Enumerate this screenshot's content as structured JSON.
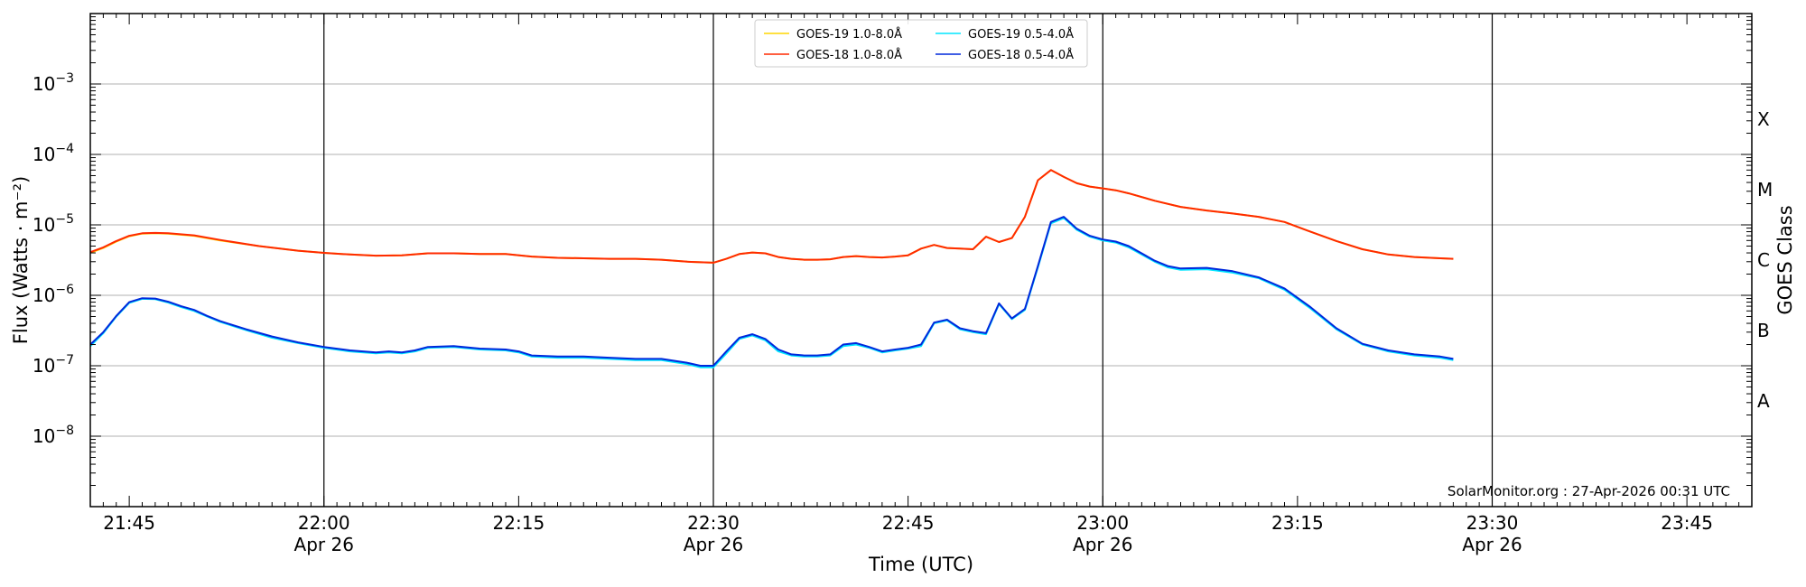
{
  "chart_data": {
    "type": "line",
    "title": "",
    "xlabel": "Time (UTC)",
    "ylabel": "Flux (Watts · m⁻²)",
    "y2label": "GOES Class",
    "yscale": "log",
    "ylim": [
      1e-09,
      0.01
    ],
    "xlim": [
      "21:42",
      "23:50"
    ],
    "grid": "horizontal",
    "legend_position": "top-center",
    "credit": "SolarMonitor.org : 27-Apr-2026 00:31 UTC",
    "x_ticks": [
      {
        "t": "21:45",
        "label": "21:45",
        "sub": ""
      },
      {
        "t": "22:00",
        "label": "22:00",
        "sub": "Apr 26"
      },
      {
        "t": "22:15",
        "label": "22:15",
        "sub": ""
      },
      {
        "t": "22:30",
        "label": "22:30",
        "sub": "Apr 26"
      },
      {
        "t": "22:45",
        "label": "22:45",
        "sub": ""
      },
      {
        "t": "23:00",
        "label": "23:00",
        "sub": "Apr 26"
      },
      {
        "t": "23:15",
        "label": "23:15",
        "sub": ""
      },
      {
        "t": "23:30",
        "label": "23:30",
        "sub": "Apr 26"
      },
      {
        "t": "23:45",
        "label": "23:45",
        "sub": ""
      }
    ],
    "day_lines": [
      "22:00",
      "22:30",
      "23:00",
      "23:30"
    ],
    "y_ticks": [
      {
        "value": 1e-08,
        "base": "10",
        "exp": "−8"
      },
      {
        "value": 1e-07,
        "base": "10",
        "exp": "−7"
      },
      {
        "value": 1e-06,
        "base": "10",
        "exp": "−6"
      },
      {
        "value": 1e-05,
        "base": "10",
        "exp": "−5"
      },
      {
        "value": 0.0001,
        "base": "10",
        "exp": "−4"
      },
      {
        "value": 0.001,
        "base": "10",
        "exp": "−3"
      }
    ],
    "classes": [
      {
        "label": "A",
        "value": 3.16e-08
      },
      {
        "label": "B",
        "value": 3.16e-07
      },
      {
        "label": "C",
        "value": 3.16e-06
      },
      {
        "label": "M",
        "value": 3.16e-05
      },
      {
        "label": "X",
        "value": 0.000316
      }
    ],
    "series": [
      {
        "name": "GOES-19 1.0-8.0Å",
        "color": "#FFD500",
        "x": [
          "21:42",
          "21:43",
          "21:44",
          "21:45",
          "21:46",
          "21:47",
          "21:48",
          "21:50",
          "21:52",
          "21:55",
          "21:58",
          "22:00",
          "22:02",
          "22:04",
          "22:06",
          "22:08",
          "22:10",
          "22:12",
          "22:14",
          "22:16",
          "22:18",
          "22:20",
          "22:22",
          "22:24",
          "22:26",
          "22:28",
          "22:30",
          "22:31",
          "22:32",
          "22:33",
          "22:34",
          "22:35",
          "22:36",
          "22:37",
          "22:38",
          "22:39",
          "22:40",
          "22:41",
          "22:42",
          "22:43",
          "22:44",
          "22:45",
          "22:46",
          "22:47",
          "22:48",
          "22:49",
          "22:50",
          "22:51",
          "22:52",
          "22:53",
          "22:54",
          "22:55",
          "22:56",
          "22:57",
          "22:58",
          "22:59",
          "23:00",
          "23:01",
          "23:02",
          "23:04",
          "23:06",
          "23:08",
          "23:10",
          "23:12",
          "23:14",
          "23:16",
          "23:18",
          "23:20",
          "23:22",
          "23:24",
          "23:26",
          "23:27"
        ],
        "y": [
          4e-06,
          4.7e-06,
          5.8e-06,
          6.9e-06,
          7.5e-06,
          7.6e-06,
          7.5e-06,
          7e-06,
          6e-06,
          5e-06,
          4.3e-06,
          4e-06,
          3.8e-06,
          3.65e-06,
          3.7e-06,
          3.95e-06,
          3.95e-06,
          3.85e-06,
          3.85e-06,
          3.55e-06,
          3.4e-06,
          3.35e-06,
          3.3e-06,
          3.3e-06,
          3.2e-06,
          3e-06,
          2.9e-06,
          3.3e-06,
          3.85e-06,
          4.05e-06,
          3.95e-06,
          3.5e-06,
          3.3e-06,
          3.2e-06,
          3.2e-06,
          3.25e-06,
          3.5e-06,
          3.6e-06,
          3.5e-06,
          3.45e-06,
          3.55e-06,
          3.7e-06,
          4.6e-06,
          5.2e-06,
          4.7e-06,
          4.6e-06,
          4.5e-06,
          6.8e-06,
          5.7e-06,
          6.5e-06,
          1.3e-05,
          4.3e-05,
          6e-05,
          4.8e-05,
          3.9e-05,
          3.5e-05,
          3.3e-05,
          3.1e-05,
          2.8e-05,
          2.2e-05,
          1.8e-05,
          1.6e-05,
          1.45e-05,
          1.3e-05,
          1.1e-05,
          8e-06,
          5.9e-06,
          4.5e-06,
          3.8e-06,
          3.5e-06,
          3.35e-06,
          3.3e-06
        ]
      },
      {
        "name": "GOES-18 1.0-8.0Å",
        "color": "#FF2A00",
        "x": [
          "21:42",
          "21:43",
          "21:44",
          "21:45",
          "21:46",
          "21:47",
          "21:48",
          "21:50",
          "21:52",
          "21:55",
          "21:58",
          "22:00",
          "22:02",
          "22:04",
          "22:06",
          "22:08",
          "22:10",
          "22:12",
          "22:14",
          "22:16",
          "22:18",
          "22:20",
          "22:22",
          "22:24",
          "22:26",
          "22:28",
          "22:30",
          "22:31",
          "22:32",
          "22:33",
          "22:34",
          "22:35",
          "22:36",
          "22:37",
          "22:38",
          "22:39",
          "22:40",
          "22:41",
          "22:42",
          "22:43",
          "22:44",
          "22:45",
          "22:46",
          "22:47",
          "22:48",
          "22:49",
          "22:50",
          "22:51",
          "22:52",
          "22:53",
          "22:54",
          "22:55",
          "22:56",
          "22:57",
          "22:58",
          "22:59",
          "23:00",
          "23:01",
          "23:02",
          "23:04",
          "23:06",
          "23:08",
          "23:10",
          "23:12",
          "23:14",
          "23:16",
          "23:18",
          "23:20",
          "23:22",
          "23:24",
          "23:26",
          "23:27"
        ],
        "y": [
          4.1e-06,
          4.8e-06,
          5.9e-06,
          7e-06,
          7.6e-06,
          7.7e-06,
          7.6e-06,
          7.1e-06,
          6.1e-06,
          5e-06,
          4.3e-06,
          4e-06,
          3.8e-06,
          3.65e-06,
          3.7e-06,
          3.95e-06,
          3.95e-06,
          3.85e-06,
          3.85e-06,
          3.55e-06,
          3.4e-06,
          3.35e-06,
          3.3e-06,
          3.3e-06,
          3.2e-06,
          3e-06,
          2.9e-06,
          3.3e-06,
          3.85e-06,
          4.05e-06,
          3.95e-06,
          3.5e-06,
          3.3e-06,
          3.2e-06,
          3.2e-06,
          3.25e-06,
          3.5e-06,
          3.6e-06,
          3.5e-06,
          3.45e-06,
          3.55e-06,
          3.7e-06,
          4.6e-06,
          5.2e-06,
          4.7e-06,
          4.6e-06,
          4.5e-06,
          6.8e-06,
          5.7e-06,
          6.5e-06,
          1.3e-05,
          4.3e-05,
          6e-05,
          4.8e-05,
          3.9e-05,
          3.5e-05,
          3.3e-05,
          3.1e-05,
          2.8e-05,
          2.2e-05,
          1.8e-05,
          1.6e-05,
          1.45e-05,
          1.3e-05,
          1.1e-05,
          8e-06,
          5.9e-06,
          4.5e-06,
          3.8e-06,
          3.5e-06,
          3.35e-06,
          3.3e-06
        ]
      },
      {
        "name": "GOES-19 0.5-4.0Å",
        "color": "#00E5FF",
        "x": [
          "21:42",
          "21:43",
          "21:44",
          "21:45",
          "21:46",
          "21:47",
          "21:48",
          "21:49",
          "21:50",
          "21:51",
          "21:52",
          "21:54",
          "21:56",
          "21:58",
          "22:00",
          "22:02",
          "22:04",
          "22:05",
          "22:06",
          "22:07",
          "22:08",
          "22:10",
          "22:12",
          "22:14",
          "22:15",
          "22:16",
          "22:18",
          "22:20",
          "22:22",
          "22:24",
          "22:26",
          "22:28",
          "22:29",
          "22:30",
          "22:31",
          "22:32",
          "22:33",
          "22:34",
          "22:35",
          "22:36",
          "22:37",
          "22:38",
          "22:39",
          "22:40",
          "22:41",
          "22:42",
          "22:43",
          "22:44",
          "22:45",
          "22:46",
          "22:47",
          "22:48",
          "22:49",
          "22:50",
          "22:51",
          "22:52",
          "22:53",
          "22:54",
          "22:55",
          "22:56",
          "22:57",
          "22:58",
          "22:59",
          "23:00",
          "23:01",
          "23:02",
          "23:04",
          "23:05",
          "23:06",
          "23:08",
          "23:10",
          "23:12",
          "23:14",
          "23:16",
          "23:18",
          "23:20",
          "23:22",
          "23:24",
          "23:26",
          "23:27"
        ],
        "y": [
          1.9e-07,
          2.9e-07,
          5e-07,
          7.8e-07,
          8.9e-07,
          8.8e-07,
          7.9e-07,
          6.8e-07,
          6e-07,
          5e-07,
          4.2e-07,
          3.2e-07,
          2.5e-07,
          2.1e-07,
          1.8e-07,
          1.6e-07,
          1.5e-07,
          1.55e-07,
          1.5e-07,
          1.6e-07,
          1.8e-07,
          1.85e-07,
          1.7e-07,
          1.65e-07,
          1.55e-07,
          1.35e-07,
          1.3e-07,
          1.3e-07,
          1.25e-07,
          1.2e-07,
          1.2e-07,
          1.05e-07,
          9.5e-08,
          9.5e-08,
          1.5e-07,
          2.4e-07,
          2.7e-07,
          2.3e-07,
          1.6e-07,
          1.4e-07,
          1.35e-07,
          1.35e-07,
          1.4e-07,
          1.9e-07,
          2e-07,
          1.8e-07,
          1.55e-07,
          1.65e-07,
          1.75e-07,
          1.9e-07,
          4e-07,
          4.4e-07,
          3.3e-07,
          3e-07,
          2.8e-07,
          7.5e-07,
          4.6e-07,
          6.2e-07,
          2.5e-06,
          1.05e-05,
          1.25e-05,
          8.5e-06,
          6.8e-06,
          6e-06,
          5.6e-06,
          4.8e-06,
          3e-06,
          2.5e-06,
          2.3e-06,
          2.35e-06,
          2.1e-06,
          1.75e-06,
          1.2e-06,
          6.5e-07,
          3.3e-07,
          2e-07,
          1.6e-07,
          1.4e-07,
          1.3e-07,
          1.2e-07
        ]
      },
      {
        "name": "GOES-18 0.5-4.0Å",
        "color": "#0028DC",
        "x": [
          "21:42",
          "21:43",
          "21:44",
          "21:45",
          "21:46",
          "21:47",
          "21:48",
          "21:49",
          "21:50",
          "21:51",
          "21:52",
          "21:54",
          "21:56",
          "21:58",
          "22:00",
          "22:02",
          "22:04",
          "22:05",
          "22:06",
          "22:07",
          "22:08",
          "22:10",
          "22:12",
          "22:14",
          "22:15",
          "22:16",
          "22:18",
          "22:20",
          "22:22",
          "22:24",
          "22:26",
          "22:28",
          "22:29",
          "22:30",
          "22:31",
          "22:32",
          "22:33",
          "22:34",
          "22:35",
          "22:36",
          "22:37",
          "22:38",
          "22:39",
          "22:40",
          "22:41",
          "22:42",
          "22:43",
          "22:44",
          "22:45",
          "22:46",
          "22:47",
          "22:48",
          "22:49",
          "22:50",
          "22:51",
          "22:52",
          "22:53",
          "22:54",
          "22:55",
          "22:56",
          "22:57",
          "22:58",
          "22:59",
          "23:00",
          "23:01",
          "23:02",
          "23:04",
          "23:05",
          "23:06",
          "23:08",
          "23:10",
          "23:12",
          "23:14",
          "23:16",
          "23:18",
          "23:20",
          "23:22",
          "23:24",
          "23:26",
          "23:27"
        ],
        "y": [
          2e-07,
          3e-07,
          5.1e-07,
          8e-07,
          9.1e-07,
          9e-07,
          8.1e-07,
          7e-07,
          6.2e-07,
          5.1e-07,
          4.3e-07,
          3.3e-07,
          2.6e-07,
          2.15e-07,
          1.85e-07,
          1.65e-07,
          1.55e-07,
          1.6e-07,
          1.55e-07,
          1.65e-07,
          1.85e-07,
          1.9e-07,
          1.75e-07,
          1.7e-07,
          1.6e-07,
          1.4e-07,
          1.35e-07,
          1.35e-07,
          1.3e-07,
          1.25e-07,
          1.25e-07,
          1.1e-07,
          1e-07,
          1e-07,
          1.6e-07,
          2.5e-07,
          2.8e-07,
          2.4e-07,
          1.7e-07,
          1.45e-07,
          1.4e-07,
          1.4e-07,
          1.45e-07,
          2e-07,
          2.1e-07,
          1.85e-07,
          1.6e-07,
          1.7e-07,
          1.8e-07,
          2e-07,
          4.1e-07,
          4.5e-07,
          3.4e-07,
          3.1e-07,
          2.9e-07,
          7.7e-07,
          4.7e-07,
          6.4e-07,
          2.6e-06,
          1.1e-05,
          1.3e-05,
          8.8e-06,
          7e-06,
          6.2e-06,
          5.8e-06,
          5e-06,
          3.1e-06,
          2.6e-06,
          2.4e-06,
          2.45e-06,
          2.2e-06,
          1.8e-06,
          1.25e-06,
          6.8e-07,
          3.4e-07,
          2.05e-07,
          1.65e-07,
          1.45e-07,
          1.35e-07,
          1.25e-07
        ]
      }
    ]
  }
}
